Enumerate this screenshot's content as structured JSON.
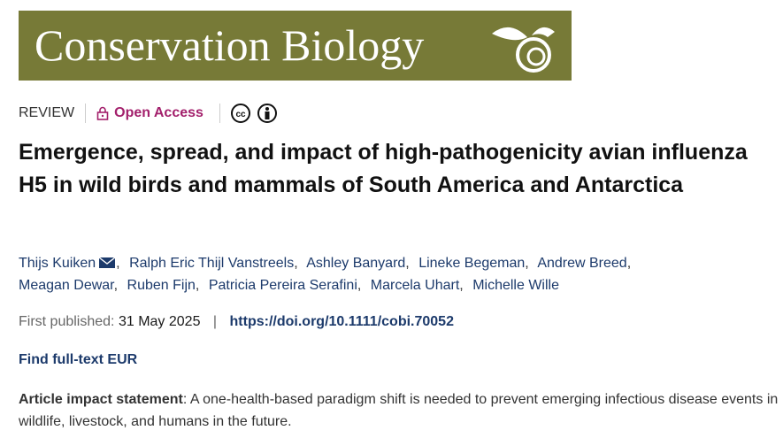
{
  "header": {
    "journal": "Conservation Biology"
  },
  "article": {
    "type": "REVIEW",
    "access": "Open Access",
    "title": "Emergence, spread, and impact of high-pathogenicity avian influenza H5 in wild birds and mammals of South America and Antarctica",
    "authors": [
      "Thijs Kuiken",
      "Ralph Eric Thijl Vanstreels",
      "Ashley Banyard",
      "Lineke Begeman",
      "Andrew Breed",
      "Meagan Dewar",
      "Ruben Fijn",
      "Patricia Pereira Serafini",
      "Marcela Uhart",
      "Michelle Wille"
    ],
    "author_separator": ",",
    "first_published_label": "First published:",
    "first_published": "31 May 2025",
    "separator": "|",
    "doi": "https://doi.org/10.1111/cobi.70052",
    "full_text": "Find full-text EUR",
    "impact_label": "Article impact statement",
    "impact": ": A one-health-based paradigm shift is needed to prevent emerging infectious disease events in wildlife, livestock, and humans in the future."
  }
}
